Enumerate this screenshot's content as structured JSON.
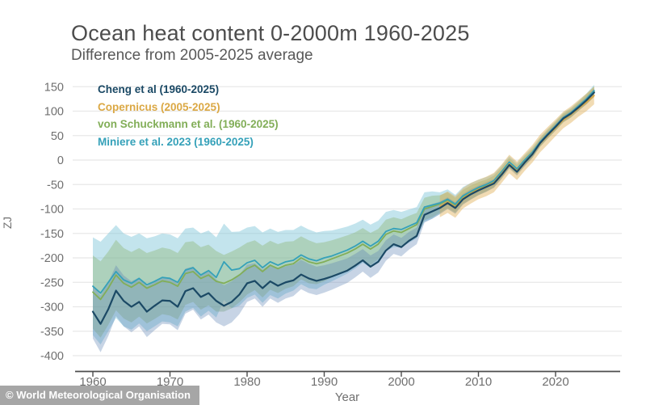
{
  "title": "Ocean heat content 0-2000m 1960-2025",
  "subtitle": "Difference from 2005-2025 average",
  "watermark": "© World Meteorological Organisation",
  "chart_data": {
    "type": "line",
    "title": "Ocean heat content 0-2000m 1960-2025",
    "subtitle": "Difference from 2005-2025 average",
    "xlabel": "Year",
    "ylabel": "ZJ",
    "xlim": [
      1958,
      2028
    ],
    "ylim": [
      -420,
      170
    ],
    "grid": true,
    "legend_position": "top-left",
    "x_ticks": [
      {
        "v": 1960,
        "label": "1960"
      },
      {
        "v": 1970,
        "label": "1970"
      },
      {
        "v": 1980,
        "label": "1980"
      },
      {
        "v": 1990,
        "label": "1990"
      },
      {
        "v": 2000,
        "label": "2000"
      },
      {
        "v": 2010,
        "label": "2010"
      },
      {
        "v": 2020,
        "label": "2020"
      }
    ],
    "y_ticks": [
      {
        "v": 150,
        "label": "150"
      },
      {
        "v": 100,
        "label": "100"
      },
      {
        "v": 50,
        "label": "50"
      },
      {
        "v": 0,
        "label": "0"
      },
      {
        "v": -50,
        "label": "-50"
      },
      {
        "v": -100,
        "label": "-100"
      },
      {
        "v": -150,
        "label": "-150"
      },
      {
        "v": -200,
        "label": "-200"
      },
      {
        "v": -250,
        "label": "-250"
      },
      {
        "v": -300,
        "label": "-300"
      },
      {
        "v": -350,
        "label": "-350"
      },
      {
        "v": -400,
        "label": "-400"
      }
    ],
    "band_order": [
      3,
      2,
      0,
      1
    ],
    "line_order": [
      2,
      3,
      1,
      0
    ],
    "series": [
      {
        "id": "cheng",
        "name": "Cheng et al (1960-2025)",
        "color": "#1b4965",
        "band_color": "rgba(90,130,180,0.34)",
        "width": 2.2,
        "start_year": 1960,
        "values": [
          -310,
          -335,
          -305,
          -267,
          -288,
          -300,
          -290,
          -310,
          -298,
          -287,
          -288,
          -300,
          -268,
          -262,
          -280,
          -272,
          -288,
          -298,
          -290,
          -275,
          -252,
          -247,
          -262,
          -248,
          -257,
          -250,
          -246,
          -234,
          -242,
          -247,
          -243,
          -238,
          -232,
          -226,
          -216,
          -205,
          -218,
          -208,
          -185,
          -172,
          -178,
          -165,
          -155,
          -112,
          -105,
          -98,
          -88,
          -98,
          -80,
          -70,
          -62,
          -55,
          -48,
          -30,
          -10,
          -24,
          -5,
          12,
          35,
          52,
          68,
          85,
          95,
          108,
          122,
          138
        ],
        "band": [
          55,
          58,
          55,
          52,
          52,
          52,
          50,
          52,
          50,
          48,
          48,
          48,
          46,
          44,
          46,
          44,
          44,
          42,
          42,
          40,
          38,
          36,
          38,
          35,
          35,
          33,
          32,
          30,
          30,
          29,
          28,
          27,
          26,
          25,
          24,
          23,
          23,
          22,
          21,
          20,
          19,
          18,
          17,
          16,
          15,
          13,
          12,
          12,
          11,
          11,
          10,
          10,
          9,
          9,
          8,
          8,
          8,
          8,
          7,
          7,
          7,
          7,
          7,
          7,
          8,
          9
        ]
      },
      {
        "id": "copernicus",
        "name": "Copernicus (2005-2025)",
        "color": "#dba844",
        "band_color": "rgba(224,176,86,0.45)",
        "width": 1.8,
        "start_year": 2005,
        "values": [
          -95,
          -86,
          -96,
          -78,
          -68,
          -60,
          -54,
          -46,
          -28,
          -8,
          -22,
          -4,
          13,
          34,
          50,
          66,
          82,
          93,
          106,
          118,
          132
        ],
        "band": [
          22,
          22,
          22,
          21,
          21,
          20,
          20,
          20,
          19,
          19,
          19,
          18,
          18,
          18,
          18,
          17,
          17,
          17,
          17,
          18,
          18
        ]
      },
      {
        "id": "schuckmann",
        "name": "von Schuckmann et al. (1960-2025)",
        "color": "#82ae58",
        "band_color": "rgba(140,180,115,0.40)",
        "width": 1.8,
        "start_year": 1960,
        "values": [
          -270,
          -285,
          -262,
          -235,
          -252,
          -260,
          -250,
          -262,
          -255,
          -247,
          -250,
          -258,
          -232,
          -228,
          -242,
          -235,
          -248,
          -252,
          -245,
          -235,
          -222,
          -215,
          -228,
          -215,
          -222,
          -215,
          -212,
          -200,
          -208,
          -212,
          -208,
          -202,
          -196,
          -190,
          -182,
          -172,
          -182,
          -172,
          -152,
          -145,
          -148,
          -140,
          -132,
          -100,
          -95,
          -90,
          -82,
          -92,
          -75,
          -66,
          -58,
          -52,
          -44,
          -26,
          -6,
          -20,
          -2,
          14,
          36,
          53,
          69,
          86,
          96,
          110,
          124,
          140
        ],
        "band": [
          75,
          78,
          75,
          72,
          72,
          72,
          70,
          72,
          70,
          68,
          68,
          68,
          64,
          62,
          64,
          62,
          62,
          58,
          58,
          56,
          53,
          51,
          53,
          50,
          50,
          48,
          46,
          44,
          44,
          42,
          40,
          38,
          37,
          36,
          34,
          33,
          33,
          31,
          30,
          28,
          27,
          26,
          24,
          23,
          22,
          18,
          16,
          15,
          14,
          14,
          13,
          12,
          12,
          11,
          10,
          10,
          10,
          9,
          9,
          9,
          9,
          9,
          9,
          9,
          10,
          11
        ]
      },
      {
        "id": "miniere",
        "name": "Miniere et al. 2023 (1960-2025)",
        "color": "#35a1b9",
        "band_color": "rgba(122,196,214,0.45)",
        "width": 1.8,
        "start_year": 1960,
        "values": [
          -258,
          -272,
          -250,
          -228,
          -245,
          -252,
          -242,
          -255,
          -248,
          -240,
          -242,
          -250,
          -225,
          -220,
          -235,
          -226,
          -240,
          -208,
          -225,
          -222,
          -210,
          -205,
          -220,
          -208,
          -215,
          -208,
          -205,
          -194,
          -202,
          -206,
          -200,
          -196,
          -190,
          -184,
          -176,
          -166,
          -176,
          -166,
          -146,
          -140,
          -142,
          -135,
          -128,
          -96,
          -92,
          -88,
          -80,
          -90,
          -73,
          -64,
          -56,
          -50,
          -42,
          -24,
          -4,
          -18,
          0,
          16,
          37,
          54,
          70,
          87,
          97,
          111,
          125,
          142
        ],
        "band": [
          100,
          105,
          100,
          95,
          95,
          95,
          92,
          95,
          92,
          90,
          90,
          90,
          85,
          82,
          85,
          82,
          82,
          78,
          78,
          76,
          72,
          70,
          72,
          68,
          68,
          65,
          62,
          60,
          60,
          58,
          55,
          52,
          50,
          48,
          46,
          44,
          44,
          42,
          40,
          38,
          36,
          34,
          32,
          30,
          28,
          22,
          20,
          19,
          18,
          17,
          16,
          15,
          14,
          13,
          12,
          12,
          11,
          11,
          10,
          10,
          10,
          10,
          10,
          10,
          11,
          12
        ]
      }
    ]
  }
}
